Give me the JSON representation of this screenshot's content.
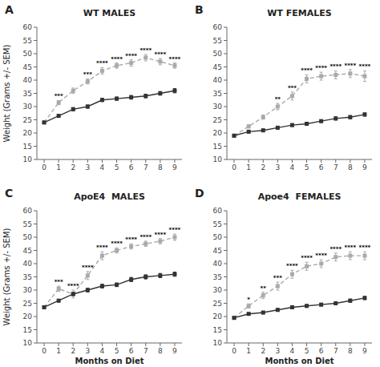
{
  "chart_data": [
    {
      "type": "line",
      "panel_label": "A",
      "title": "WT MALES",
      "ylabel": "Weight (Grams +/- SEM)",
      "x": [
        0,
        1,
        2,
        3,
        4,
        5,
        6,
        7,
        8,
        9
      ],
      "series": [
        {
          "color": "#aaaaaa",
          "line_style": "dashed",
          "marker": "square",
          "values": [
            24.0,
            31.5,
            36.0,
            39.5,
            43.5,
            45.5,
            46.5,
            48.5,
            47.0,
            45.5
          ],
          "errors": [
            0.3,
            0.8,
            1.0,
            1.0,
            1.2,
            1.0,
            1.2,
            1.2,
            1.2,
            1.0
          ],
          "annotations": [
            null,
            "***",
            null,
            "***",
            "****",
            "****",
            "****",
            "****",
            "****",
            "****"
          ]
        },
        {
          "color": "#333333",
          "line_style": "solid",
          "marker": "square",
          "values": [
            24.0,
            26.5,
            29.0,
            30.0,
            32.5,
            33.0,
            33.5,
            34.0,
            35.0,
            36.0
          ],
          "errors": [
            0.3,
            0.5,
            0.6,
            0.6,
            0.6,
            0.6,
            0.7,
            0.7,
            0.7,
            0.8
          ]
        }
      ],
      "xlim": [
        -0.5,
        9.5
      ],
      "xticks": [
        0,
        1,
        2,
        3,
        4,
        5,
        6,
        7,
        8,
        9
      ],
      "ylim": [
        10,
        60
      ],
      "yticks": [
        10,
        15,
        20,
        25,
        30,
        35,
        40,
        45,
        50,
        55,
        60
      ],
      "grid": false
    },
    {
      "type": "line",
      "panel_label": "B",
      "title": "WT FEMALES",
      "x": [
        0,
        1,
        2,
        3,
        4,
        5,
        6,
        7,
        8,
        9
      ],
      "series": [
        {
          "color": "#aaaaaa",
          "line_style": "dashed",
          "marker": "square",
          "values": [
            19.0,
            22.5,
            26.0,
            30.0,
            34.0,
            40.5,
            41.5,
            42.0,
            42.5,
            41.5
          ],
          "errors": [
            0.3,
            0.6,
            0.8,
            1.2,
            1.5,
            1.5,
            1.5,
            1.5,
            1.5,
            2.0
          ],
          "annotations": [
            null,
            null,
            null,
            "**",
            "***",
            "****",
            "****",
            "****",
            "****",
            "****"
          ]
        },
        {
          "color": "#333333",
          "line_style": "solid",
          "marker": "square",
          "values": [
            19.0,
            20.5,
            21.0,
            22.0,
            23.0,
            23.5,
            24.5,
            25.5,
            26.0,
            27.0
          ],
          "errors": [
            0.3,
            0.4,
            0.5,
            0.5,
            0.5,
            0.5,
            0.5,
            0.6,
            0.6,
            0.6
          ]
        }
      ],
      "xlim": [
        -0.5,
        9.5
      ],
      "xticks": [
        0,
        1,
        2,
        3,
        4,
        5,
        6,
        7,
        8,
        9
      ],
      "ylim": [
        10,
        60
      ],
      "yticks": [
        10,
        15,
        20,
        25,
        30,
        35,
        40,
        45,
        50,
        55,
        60
      ],
      "grid": false
    },
    {
      "type": "line",
      "panel_label": "C",
      "title": "ApoE4  MALES",
      "ylabel": "Weight (Grams +/- SEM)",
      "xlabel": "Months on Diet",
      "x": [
        0,
        1,
        2,
        3,
        4,
        5,
        6,
        7,
        8,
        9
      ],
      "series": [
        {
          "color": "#aaaaaa",
          "line_style": "dashed",
          "marker": "square",
          "values": [
            23.5,
            30.5,
            28.5,
            35.5,
            43.0,
            45.0,
            46.5,
            47.5,
            48.5,
            50.0
          ],
          "errors": [
            0.3,
            1.0,
            1.5,
            1.5,
            1.5,
            1.0,
            1.0,
            1.0,
            1.0,
            1.2
          ],
          "annotations": [
            null,
            "***",
            "****",
            "****",
            "****",
            "****",
            "****",
            "****",
            "****",
            "****"
          ]
        },
        {
          "color": "#333333",
          "line_style": "solid",
          "marker": "square",
          "values": [
            23.5,
            26.0,
            28.5,
            30.0,
            31.5,
            32.0,
            34.0,
            35.0,
            35.5,
            36.0
          ],
          "errors": [
            0.3,
            0.5,
            0.6,
            0.7,
            0.7,
            0.7,
            0.8,
            0.8,
            0.8,
            0.8
          ]
        }
      ],
      "xlim": [
        -0.5,
        9.5
      ],
      "xticks": [
        0,
        1,
        2,
        3,
        4,
        5,
        6,
        7,
        8,
        9
      ],
      "ylim": [
        10,
        60
      ],
      "yticks": [
        10,
        15,
        20,
        25,
        30,
        35,
        40,
        45,
        50,
        55,
        60
      ],
      "grid": false
    },
    {
      "type": "line",
      "panel_label": "D",
      "title": "Apoe4  FEMALES",
      "xlabel": "Months on Diet",
      "x": [
        0,
        1,
        2,
        3,
        4,
        5,
        6,
        7,
        8,
        9
      ],
      "series": [
        {
          "color": "#aaaaaa",
          "line_style": "dashed",
          "marker": "square",
          "values": [
            19.5,
            24.0,
            28.0,
            31.5,
            36.0,
            39.0,
            40.0,
            42.5,
            43.0,
            43.0
          ],
          "errors": [
            0.3,
            0.8,
            1.2,
            1.5,
            1.5,
            1.5,
            1.5,
            1.5,
            1.5,
            1.5
          ],
          "annotations": [
            null,
            "*",
            "**",
            "***",
            "****",
            "****",
            "****",
            "****",
            "****",
            "****"
          ]
        },
        {
          "color": "#333333",
          "line_style": "solid",
          "marker": "square",
          "values": [
            19.5,
            21.0,
            21.5,
            22.5,
            23.5,
            24.0,
            24.5,
            25.0,
            26.0,
            27.0
          ],
          "errors": [
            0.3,
            0.4,
            0.5,
            0.5,
            0.5,
            0.5,
            0.5,
            0.5,
            0.6,
            0.6
          ]
        }
      ],
      "xlim": [
        -0.5,
        9.5
      ],
      "xticks": [
        0,
        1,
        2,
        3,
        4,
        5,
        6,
        7,
        8,
        9
      ],
      "ylim": [
        10,
        60
      ],
      "yticks": [
        10,
        15,
        20,
        25,
        30,
        35,
        40,
        45,
        50,
        55,
        60
      ],
      "grid": false
    }
  ]
}
